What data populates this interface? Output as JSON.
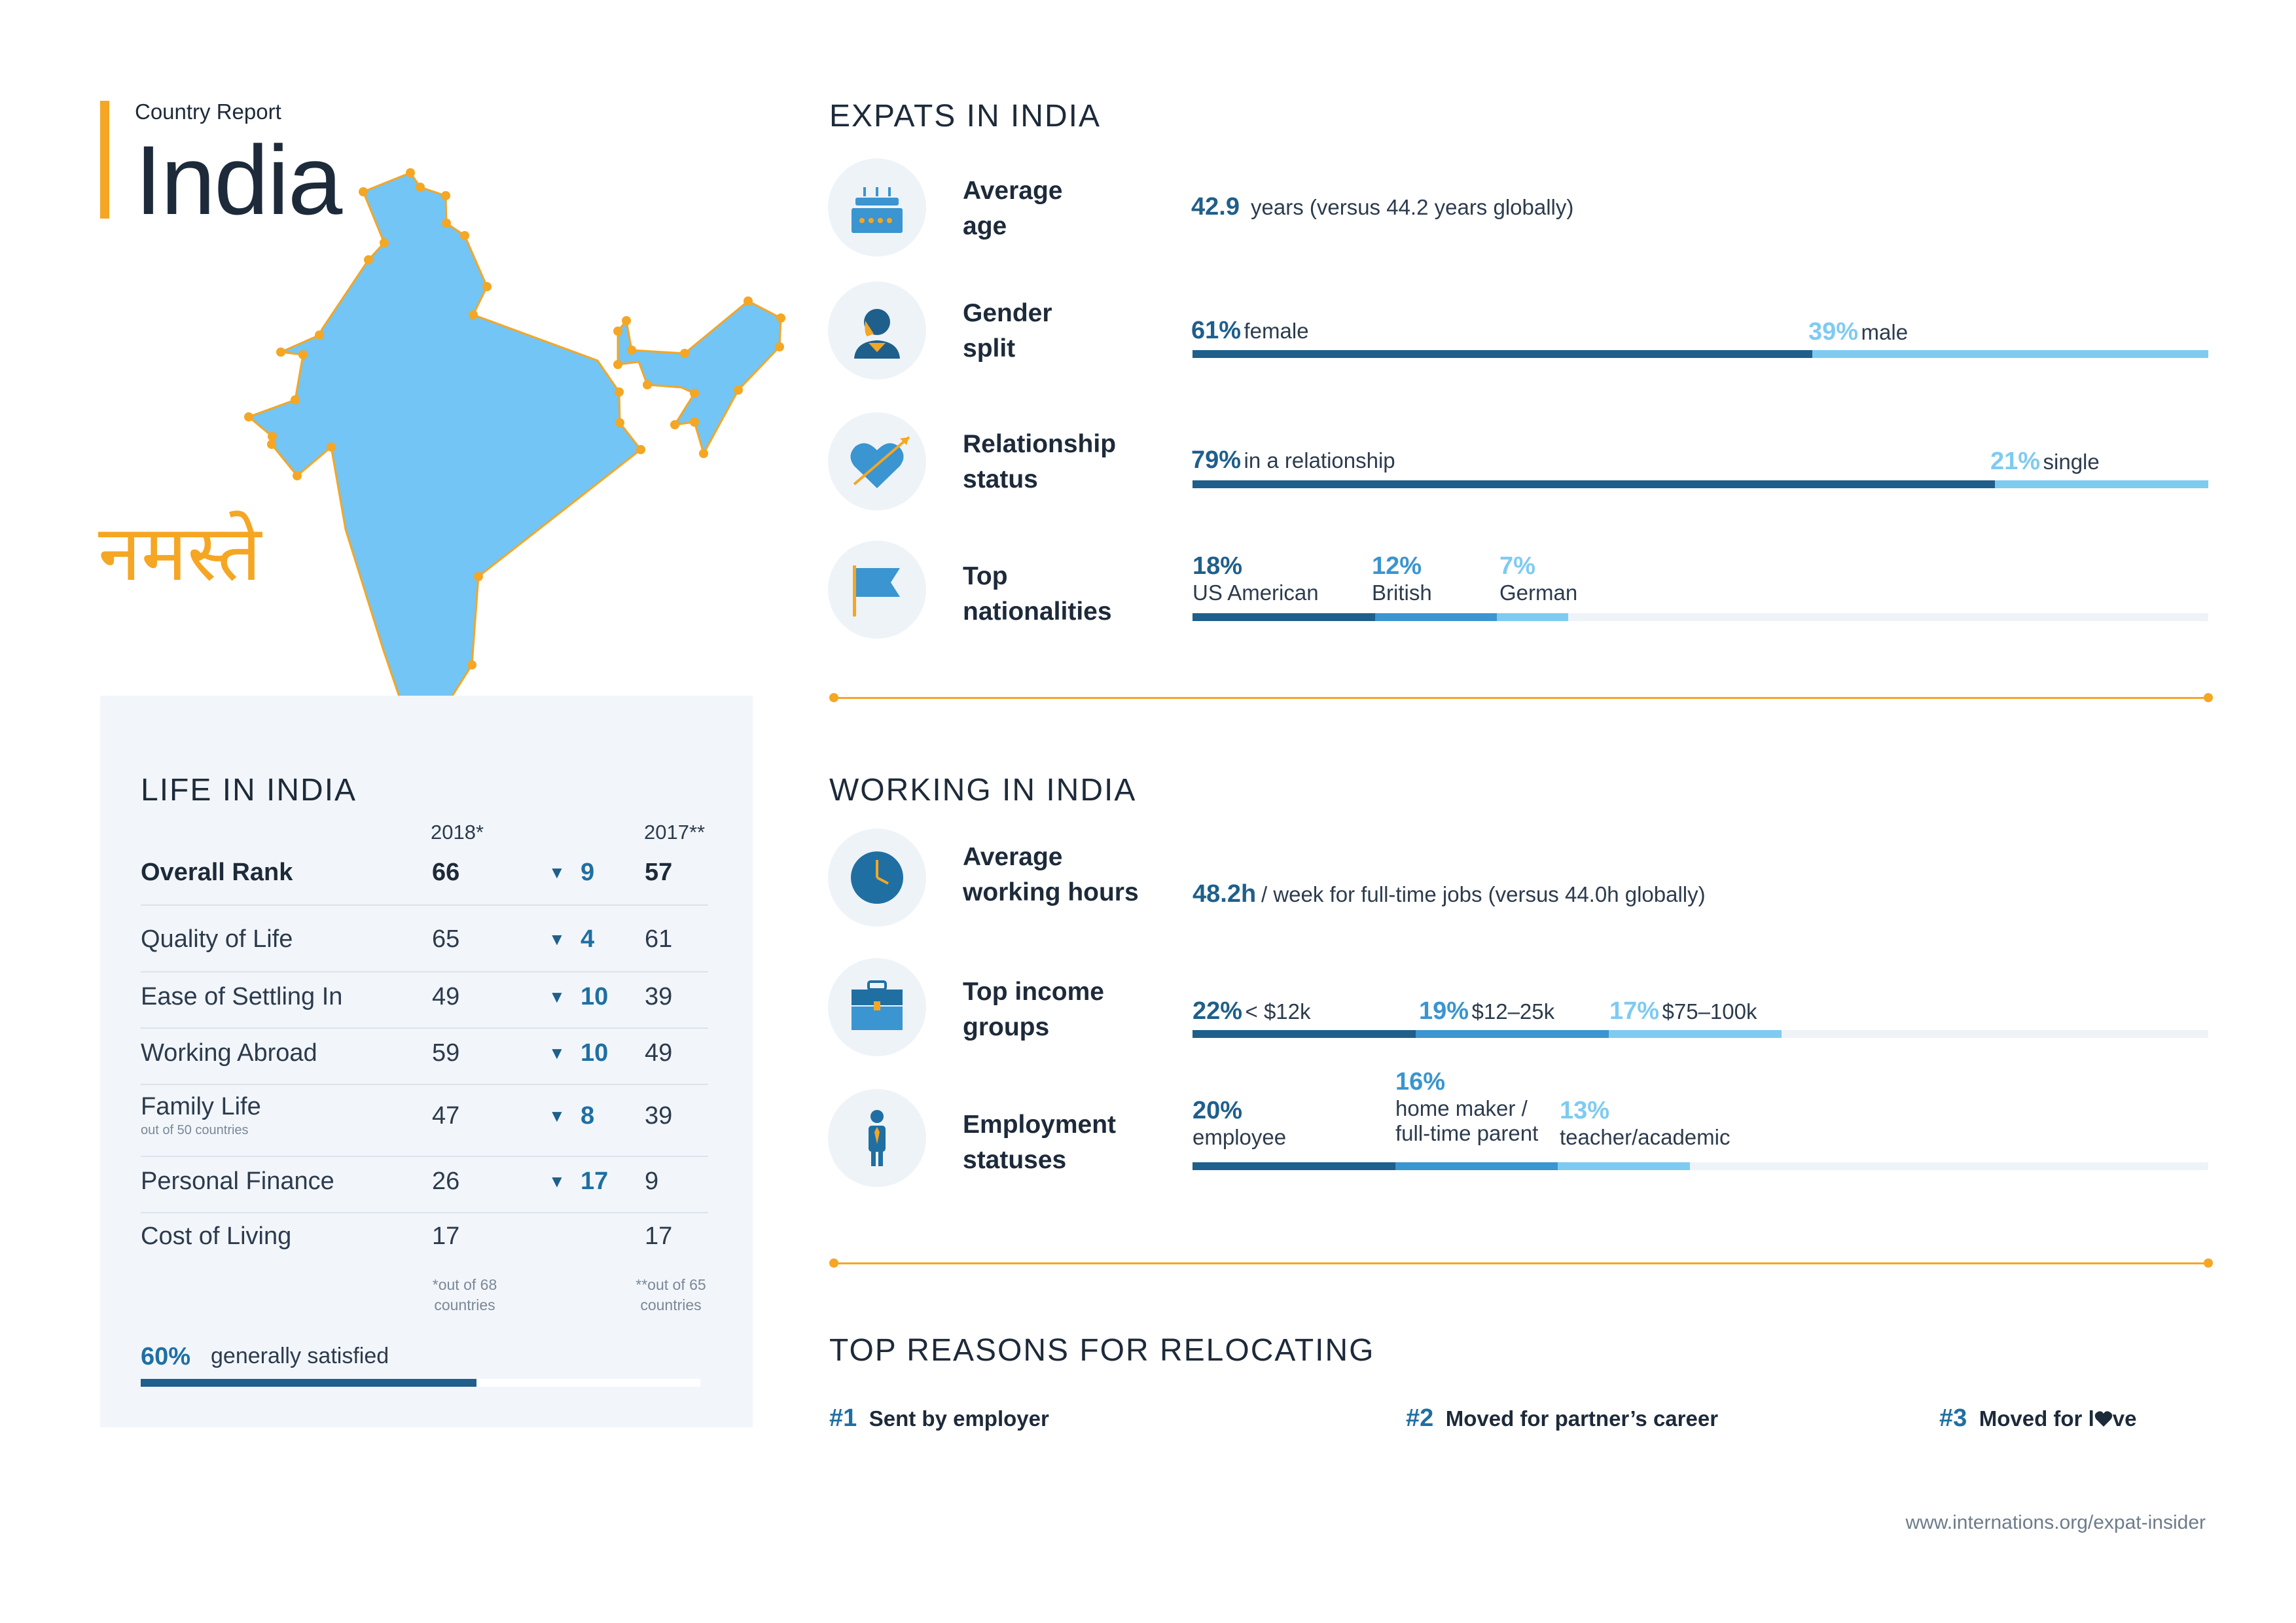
{
  "header": {
    "report_label": "Country Report",
    "country": "India",
    "greeting": "नमस्ते"
  },
  "colors": {
    "accent": "#f5a623",
    "dark_blue": "#1f5f8b",
    "mid_blue": "#3a95d0",
    "light_blue": "#7ecbf2",
    "map_fill": "#72c5f5"
  },
  "life": {
    "title": "LIFE IN INDIA",
    "col_2018": "2018*",
    "col_2017": "2017**",
    "rows": [
      {
        "label": "Overall Rank",
        "r2018": "66",
        "change": "9",
        "r2017": "57",
        "sub": ""
      },
      {
        "label": "Quality of Life",
        "r2018": "65",
        "change": "4",
        "r2017": "61",
        "sub": ""
      },
      {
        "label": "Ease of Settling In",
        "r2018": "49",
        "change": "10",
        "r2017": "39",
        "sub": ""
      },
      {
        "label": "Working Abroad",
        "r2018": "59",
        "change": "10",
        "r2017": "49",
        "sub": ""
      },
      {
        "label": "Family Life",
        "r2018": "47",
        "change": "8",
        "r2017": "39",
        "sub": "out of 50 countries"
      },
      {
        "label": "Personal Finance",
        "r2018": "26",
        "change": "17",
        "r2017": "9",
        "sub": ""
      },
      {
        "label": "Cost of Living",
        "r2018": "17",
        "change": "",
        "r2017": "17",
        "sub": ""
      }
    ],
    "change_icon": "down-triangle-icon",
    "triangle_glyph": "▼",
    "footnote_2018": [
      "*out of 68",
      "countries"
    ],
    "footnote_2017": [
      "**out of 65",
      "countries"
    ],
    "satisfied_pct": "60%",
    "satisfied_label": "generally satisfied",
    "satisfied_fraction": 0.6
  },
  "expats": {
    "title": "EXPATS IN INDIA",
    "age": {
      "label": [
        "Average",
        "age"
      ],
      "value": "42.9",
      "text": "years (versus 44.2 years globally)",
      "icon": "birthday-cake-icon"
    },
    "gender": {
      "label": [
        "Gender",
        "split"
      ],
      "icon": "person-icon",
      "parts": [
        {
          "pct": "61%",
          "text": "female",
          "fraction": 0.61
        },
        {
          "pct": "39%",
          "text": "male",
          "fraction": 0.39
        }
      ]
    },
    "relationship": {
      "label": [
        "Relationship",
        "status"
      ],
      "icon": "heart-arrow-icon",
      "parts": [
        {
          "pct": "79%",
          "text": "in a relationship",
          "fraction": 0.79
        },
        {
          "pct": "21%",
          "text": "single",
          "fraction": 0.21
        }
      ]
    },
    "nationalities": {
      "label": [
        "Top",
        "nationalities"
      ],
      "icon": "flag-icon",
      "parts": [
        {
          "pct": "18%",
          "text": "US American",
          "fraction": 0.18
        },
        {
          "pct": "12%",
          "text": "British",
          "fraction": 0.12
        },
        {
          "pct": "7%",
          "text": "German",
          "fraction": 0.07
        }
      ]
    }
  },
  "working": {
    "title": "WORKING IN INDIA",
    "hours": {
      "label": [
        "Average",
        "working hours"
      ],
      "value": "48.2h",
      "text": "/ week for full-time jobs (versus 44.0h globally)",
      "icon": "clock-icon"
    },
    "income": {
      "label": [
        "Top income",
        "groups"
      ],
      "icon": "briefcase-icon",
      "parts": [
        {
          "pct": "22%",
          "text": "< $12k",
          "fraction": 0.22
        },
        {
          "pct": "19%",
          "text": "$12–25k",
          "fraction": 0.19
        },
        {
          "pct": "17%",
          "text": "$75–100k",
          "fraction": 0.17
        }
      ]
    },
    "employment": {
      "label": [
        "Employment",
        "statuses"
      ],
      "icon": "employee-icon",
      "parts": [
        {
          "pct": "20%",
          "text": [
            "employee"
          ],
          "fraction": 0.2
        },
        {
          "pct": "16%",
          "text": [
            "home maker /",
            "full-time parent"
          ],
          "fraction": 0.16
        },
        {
          "pct": "13%",
          "text": [
            "teacher/academic"
          ],
          "fraction": 0.13
        }
      ]
    }
  },
  "reasons": {
    "title": "TOP REASONS FOR RELOCATING",
    "items": [
      {
        "num": "#1",
        "text": "Sent by employer"
      },
      {
        "num": "#2",
        "text": "Moved for partner’s career"
      },
      {
        "num": "#3",
        "text_before": "Moved for l",
        "text_after": "ve",
        "heart_icon": "heart-icon"
      }
    ]
  },
  "source": "www.internations.org/expat-insider"
}
